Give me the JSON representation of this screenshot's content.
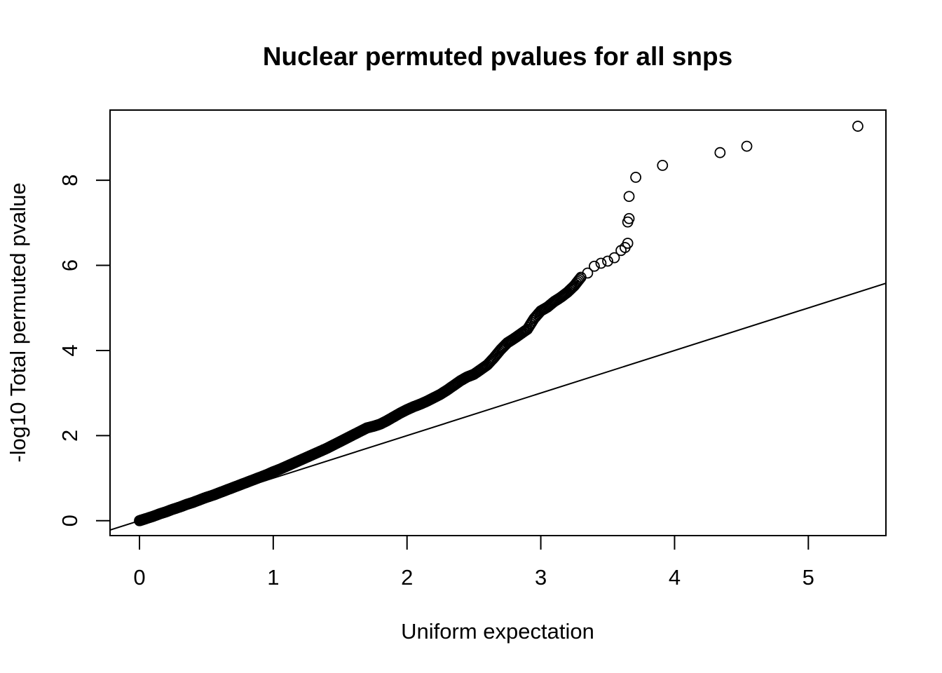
{
  "chart_data": {
    "type": "scatter",
    "title": "Nuclear permuted pvalues for all snps",
    "xlabel": "Uniform expectation",
    "ylabel": "-log10 Total permuted pvalue",
    "xlim": [
      -0.22,
      5.58
    ],
    "ylim": [
      -0.35,
      9.65
    ],
    "x_ticks": [
      0,
      1,
      2,
      3,
      4,
      5
    ],
    "y_ticks": [
      0,
      2,
      4,
      6,
      8
    ],
    "x_tick_labels": [
      "0",
      "1",
      "2",
      "3",
      "4",
      "5"
    ],
    "y_tick_labels": [
      "0",
      "2",
      "4",
      "6",
      "8"
    ],
    "grid": false,
    "legend": "none",
    "reference_line": {
      "intercept": 0,
      "slope": 1
    },
    "series": [
      {
        "marker": "open-circle",
        "points": [
          [
            0.0,
            0.0
          ],
          [
            0.02,
            0.02
          ],
          [
            0.05,
            0.05
          ],
          [
            0.1,
            0.1
          ],
          [
            0.15,
            0.16
          ],
          [
            0.2,
            0.21
          ],
          [
            0.25,
            0.27
          ],
          [
            0.3,
            0.32
          ],
          [
            0.35,
            0.38
          ],
          [
            0.4,
            0.43
          ],
          [
            0.45,
            0.49
          ],
          [
            0.5,
            0.55
          ],
          [
            0.55,
            0.6
          ],
          [
            0.6,
            0.66
          ],
          [
            0.65,
            0.72
          ],
          [
            0.7,
            0.78
          ],
          [
            0.75,
            0.84
          ],
          [
            0.8,
            0.9
          ],
          [
            0.85,
            0.96
          ],
          [
            0.9,
            1.02
          ],
          [
            0.95,
            1.08
          ],
          [
            1.0,
            1.15
          ],
          [
            1.05,
            1.21
          ],
          [
            1.1,
            1.28
          ],
          [
            1.15,
            1.35
          ],
          [
            1.2,
            1.42
          ],
          [
            1.25,
            1.49
          ],
          [
            1.3,
            1.56
          ],
          [
            1.35,
            1.63
          ],
          [
            1.4,
            1.7
          ],
          [
            1.45,
            1.78
          ],
          [
            1.5,
            1.86
          ],
          [
            1.55,
            1.94
          ],
          [
            1.6,
            2.02
          ],
          [
            1.65,
            2.1
          ],
          [
            1.7,
            2.18
          ],
          [
            1.75,
            2.22
          ],
          [
            1.8,
            2.27
          ],
          [
            1.85,
            2.35
          ],
          [
            1.9,
            2.44
          ],
          [
            1.95,
            2.53
          ],
          [
            2.0,
            2.61
          ],
          [
            2.05,
            2.68
          ],
          [
            2.1,
            2.74
          ],
          [
            2.15,
            2.81
          ],
          [
            2.2,
            2.89
          ],
          [
            2.25,
            2.97
          ],
          [
            2.3,
            3.07
          ],
          [
            2.35,
            3.18
          ],
          [
            2.4,
            3.29
          ],
          [
            2.45,
            3.38
          ],
          [
            2.5,
            3.44
          ],
          [
            2.55,
            3.55
          ],
          [
            2.6,
            3.66
          ],
          [
            2.65,
            3.83
          ],
          [
            2.7,
            4.02
          ],
          [
            2.75,
            4.18
          ],
          [
            2.8,
            4.28
          ],
          [
            2.85,
            4.39
          ],
          [
            2.9,
            4.5
          ],
          [
            2.95,
            4.75
          ],
          [
            3.0,
            4.93
          ],
          [
            3.05,
            5.02
          ],
          [
            3.1,
            5.15
          ],
          [
            3.15,
            5.25
          ],
          [
            3.2,
            5.37
          ],
          [
            3.25,
            5.52
          ],
          [
            3.3,
            5.72
          ],
          [
            3.35,
            5.82
          ],
          [
            3.4,
            5.98
          ],
          [
            3.45,
            6.05
          ],
          [
            3.5,
            6.1
          ],
          [
            3.55,
            6.18
          ],
          [
            3.6,
            6.35
          ],
          [
            3.63,
            6.42
          ],
          [
            3.65,
            6.52
          ],
          [
            3.65,
            7.02
          ],
          [
            3.66,
            7.1
          ],
          [
            3.66,
            7.62
          ],
          [
            3.71,
            8.07
          ],
          [
            3.91,
            8.35
          ],
          [
            4.34,
            8.65
          ],
          [
            4.54,
            8.8
          ],
          [
            5.37,
            9.27
          ]
        ]
      }
    ]
  }
}
